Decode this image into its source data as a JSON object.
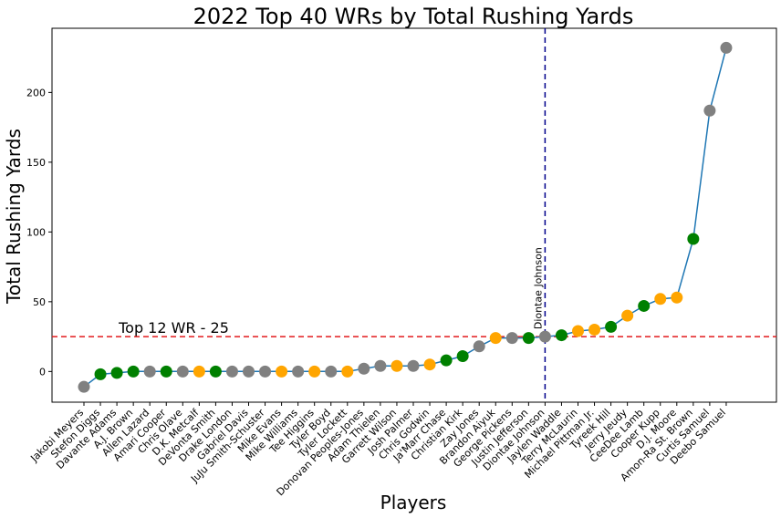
{
  "chart_data": {
    "type": "line",
    "title": "2022 Top 40 WRs by Total Rushing Yards",
    "xlabel": "Players",
    "ylabel": "Total Rushing Yards",
    "ylim": [
      -22,
      246
    ],
    "yticks": [
      0,
      50,
      100,
      150,
      200
    ],
    "grid": false,
    "line_color": "#1f77b4",
    "players": [
      "Jakobi Meyers",
      "Stefon Diggs",
      "Davante Adams",
      "A.J. Brown",
      "Allen Lazard",
      "Amari Cooper",
      "Chris Olave",
      "D.K. Metcalf",
      "DeVonta Smith",
      "Drake London",
      "Gabriel Davis",
      "JuJu Smith-Schuster",
      "Mike Evans",
      "Mike Williams",
      "Tee Higgins",
      "Tyler Boyd",
      "Tyler Lockett",
      "Donovan Peoples-Jones",
      "Adam Thielen",
      "Garrett Wilson",
      "Josh Palmer",
      "Chris Godwin",
      "Ja'Marr Chase",
      "Christian Kirk",
      "Zay Jones",
      "Brandon Aiyuk",
      "George Pickens",
      "Justin Jefferson",
      "Diontae Johnson",
      "Jaylen Waddle",
      "Terry McLaurin",
      "Michael Pittman Jr.",
      "Tyreek Hill",
      "Jerry Jeudy",
      "CeeDee Lamb",
      "Cooper Kupp",
      "D.J. Moore",
      "Amon-Ra St. Brown",
      "Curtis Samuel",
      "Deebo Samuel"
    ],
    "values": [
      -11,
      -2,
      -1,
      0,
      0,
      0,
      0,
      0,
      0,
      0,
      0,
      0,
      0,
      0,
      0,
      0,
      0,
      2,
      4,
      4,
      4,
      5,
      8,
      11,
      18,
      24,
      24,
      24,
      25,
      26,
      29,
      30,
      32,
      40,
      47,
      52,
      53,
      95,
      187,
      232
    ],
    "point_colors": [
      "gray",
      "green",
      "green",
      "green",
      "gray",
      "green",
      "gray",
      "orange",
      "green",
      "gray",
      "gray",
      "gray",
      "orange",
      "gray",
      "orange",
      "gray",
      "orange",
      "gray",
      "gray",
      "orange",
      "gray",
      "orange",
      "green",
      "green",
      "gray",
      "orange",
      "gray",
      "green",
      "gray",
      "green",
      "orange",
      "orange",
      "green",
      "orange",
      "green",
      "orange",
      "orange",
      "green",
      "gray",
      "gray"
    ],
    "hline": {
      "value": 25,
      "label": "Top 12 WR - 25",
      "color": "#e31a1c"
    },
    "vline": {
      "player": "Diontae Johnson",
      "label": "Diontae Johnson",
      "color": "#00008b"
    }
  }
}
